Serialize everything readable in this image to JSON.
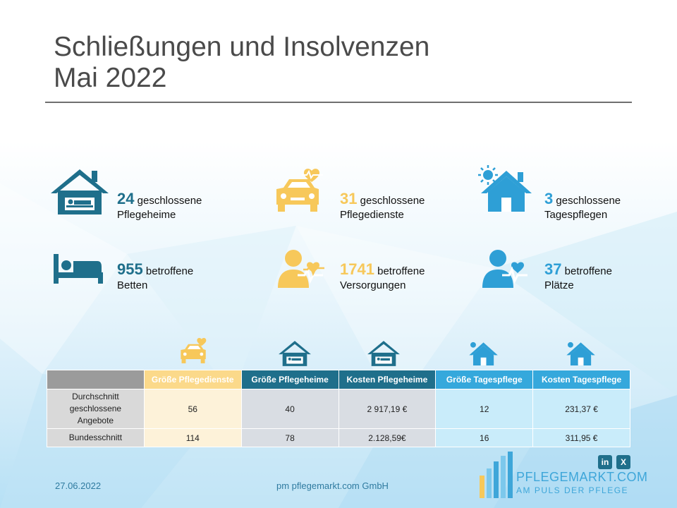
{
  "slide": {
    "title_line1": "Schließungen und Insolvenzen",
    "title_line2": "Mai 2022"
  },
  "stats": [
    {
      "number": "24",
      "text1": "geschlossene",
      "text2": "Pflegeheime",
      "icon": "house-bed-icon",
      "color": "#1f6f8b"
    },
    {
      "number": "31",
      "text1": "geschlossene",
      "text2": "Pflegedienste",
      "icon": "car-heart-icon",
      "color": "#f7c85a"
    },
    {
      "number": "3",
      "text1": "geschlossene",
      "text2": "Tagespflegen",
      "icon": "house-sun-icon",
      "color": "#2e9fd6"
    },
    {
      "number": "955",
      "text1": "betroffene",
      "text2": "Betten",
      "icon": "bed-icon",
      "color": "#1f6f8b"
    },
    {
      "number": "1741",
      "text1": "betroffene",
      "text2": "Versorgungen",
      "icon": "person-heartbeat-icon",
      "color": "#f7c85a"
    },
    {
      "number": "37",
      "text1": "betroffene",
      "text2": "Plätze",
      "icon": "people-heartbeat-icon",
      "color": "#2e9fd6"
    }
  ],
  "table": {
    "headers": [
      "",
      "Größe Pflegedienste",
      "Größe Pflegeheime",
      "Kosten Pflegeheime",
      "Größe Tagespflege",
      "Kosten Tagespflege"
    ],
    "rows": [
      {
        "label_lines": [
          "Durchschnitt",
          "geschlossene",
          "Angebote"
        ],
        "cells": [
          "56",
          "40",
          "2 917,19 €",
          "12",
          "231,37 €"
        ]
      },
      {
        "label": "Bundesschnitt",
        "cells": [
          "114",
          "78",
          "2.128,59€",
          "16",
          "311,95 €"
        ]
      }
    ],
    "header_colors": [
      "#9b9b9b",
      "#fbd98a",
      "#1f6f8b",
      "#1f6f8b",
      "#35a8dc",
      "#35a8dc"
    ]
  },
  "footer": {
    "date": "27.06.2022",
    "company": "pm pflegemarkt.com GmbH"
  },
  "logo": {
    "name": "PFLEGEMARKT.COM",
    "tagline": "AM PULS DER PFLEGE",
    "social": [
      "in",
      "X"
    ]
  }
}
